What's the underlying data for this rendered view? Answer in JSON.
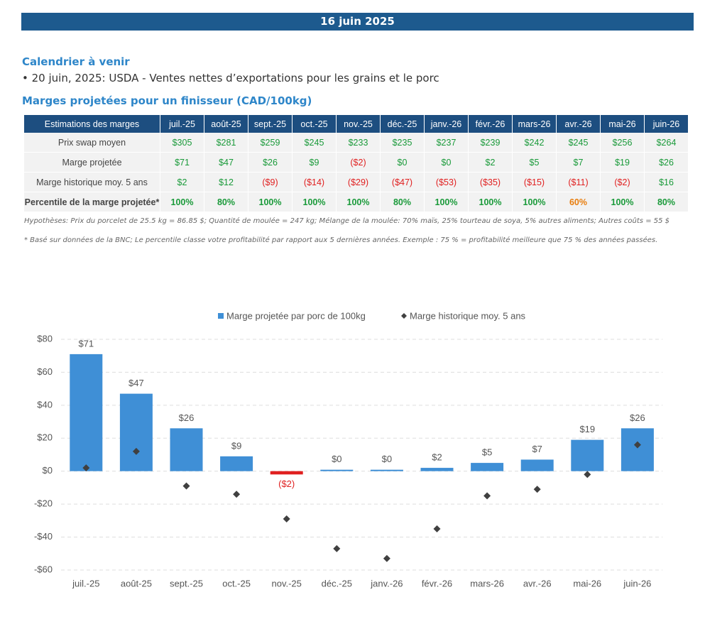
{
  "header": {
    "date": "16 juin 2025"
  },
  "calendar": {
    "title": "Calendrier à venir",
    "items": [
      "• 20 juin, 2025: USDA - Ventes nettes d’exportations pour les grains et le porc"
    ]
  },
  "table": {
    "title": "Marges projetées pour un finisseur (CAD/100kg)",
    "columns": [
      "Estimations des marges",
      "juil.-25",
      "août-25",
      "sept.-25",
      "oct.-25",
      "nov.-25",
      "déc.-25",
      "janv.-26",
      "févr.-26",
      "mars-26",
      "avr.-26",
      "mai-26",
      "juin-26"
    ],
    "rows": [
      [
        "Prix swap moyen",
        "$305",
        "$281",
        "$259",
        "$245",
        "$233",
        "$235",
        "$237",
        "$239",
        "$242",
        "$245",
        "$256",
        "$264"
      ],
      [
        "Marge projetée",
        "$71",
        "$47",
        "$26",
        "$9",
        "($2)",
        "$0",
        "$0",
        "$2",
        "$5",
        "$7",
        "$19",
        "$26"
      ],
      [
        "Marge historique moy. 5 ans",
        "$2",
        "$12",
        "($9)",
        "($14)",
        "($29)",
        "($47)",
        "($53)",
        "($35)",
        "($15)",
        "($11)",
        "($2)",
        "$16"
      ],
      [
        "Percentile de la marge projetée*",
        "100%",
        "80%",
        "100%",
        "100%",
        "100%",
        "80%",
        "100%",
        "100%",
        "100%",
        "60%",
        "100%",
        "80%"
      ]
    ],
    "notes": [
      "Hypothèses: Prix du porcelet de 25.5 kg = 86.85 $; Quantité de moulée = 247 kg; Mélange de la moulée: 70% maïs, 25% tourteau de soya, 5% autres aliments; Autres coûts = 55 $",
      "* Basé sur données de la BNC; Le percentile classe votre profitabilité par rapport aux 5 dernières années. Exemple : 75 % = profitabilité meilleure que 75 % des années passées."
    ]
  },
  "chart_data": {
    "type": "bar",
    "categories": [
      "juil.-25",
      "août-25",
      "sept.-25",
      "oct.-25",
      "nov.-25",
      "déc.-25",
      "janv.-26",
      "févr.-26",
      "mars-26",
      "avr.-26",
      "mai-26",
      "juin-26"
    ],
    "series": [
      {
        "name": "Marge projetée par porc de 100kg",
        "type": "bar",
        "color": "#3f8fd6",
        "negative_color": "#e02020",
        "values": [
          71,
          47,
          26,
          9,
          -2,
          0,
          0,
          2,
          5,
          7,
          19,
          26
        ],
        "value_labels": [
          "$71",
          "$47",
          "$26",
          "$9",
          "($2)",
          "$0",
          "$0",
          "$2",
          "$5",
          "$7",
          "$19",
          "$26"
        ]
      },
      {
        "name": "Marge historique moy. 5 ans",
        "type": "scatter",
        "color": "#404040",
        "values": [
          2,
          12,
          -9,
          -14,
          -29,
          -47,
          -53,
          -35,
          -15,
          -11,
          -2,
          16
        ]
      }
    ],
    "ylim": [
      -60,
      80
    ],
    "yticks": [
      {
        "value": -60,
        "label": "-$60"
      },
      {
        "value": -40,
        "label": "-$40"
      },
      {
        "value": -20,
        "label": "-$20"
      },
      {
        "value": 0,
        "label": "$0"
      },
      {
        "value": 20,
        "label": "$20"
      },
      {
        "value": 40,
        "label": "$40"
      },
      {
        "value": 60,
        "label": "$60"
      },
      {
        "value": 80,
        "label": "$80"
      }
    ],
    "grid": true,
    "legend": "top"
  }
}
